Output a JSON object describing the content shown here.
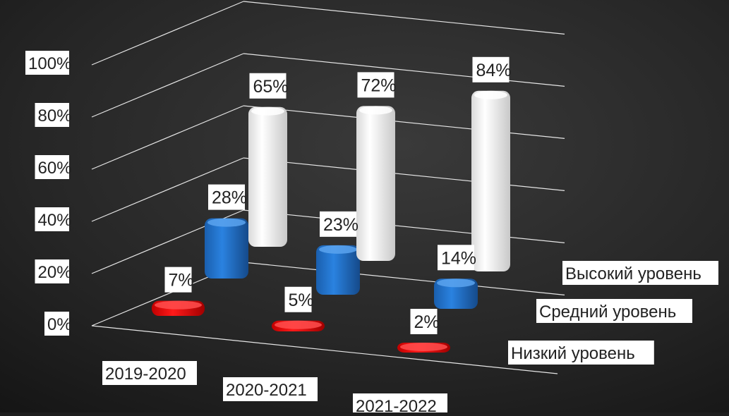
{
  "chart_data": {
    "type": "bar",
    "subtype": "3d-bar",
    "categories": [
      "2019-2020",
      "2020-2021",
      "2021-2022"
    ],
    "series": [
      {
        "name": "Низкий уровень",
        "values": [
          7,
          5,
          2
        ],
        "color": "#e31010"
      },
      {
        "name": "Средний уровень",
        "values": [
          28,
          23,
          14
        ],
        "color": "#1f6fc9"
      },
      {
        "name": "Высокий уровень",
        "values": [
          65,
          72,
          84
        ],
        "color": "#ffffff"
      }
    ],
    "value_labels": [
      [
        "7%",
        "5%",
        "2%"
      ],
      [
        "28%",
        "23%",
        "14%"
      ],
      [
        "65%",
        "72%",
        "84%"
      ]
    ],
    "y_ticks": [
      "0%",
      "20%",
      "40%",
      "60%",
      "80%",
      "100%"
    ],
    "ylim": [
      0,
      100
    ],
    "unit": "%",
    "grid": true,
    "legend": "right",
    "background_color": "#1e1e1e"
  }
}
